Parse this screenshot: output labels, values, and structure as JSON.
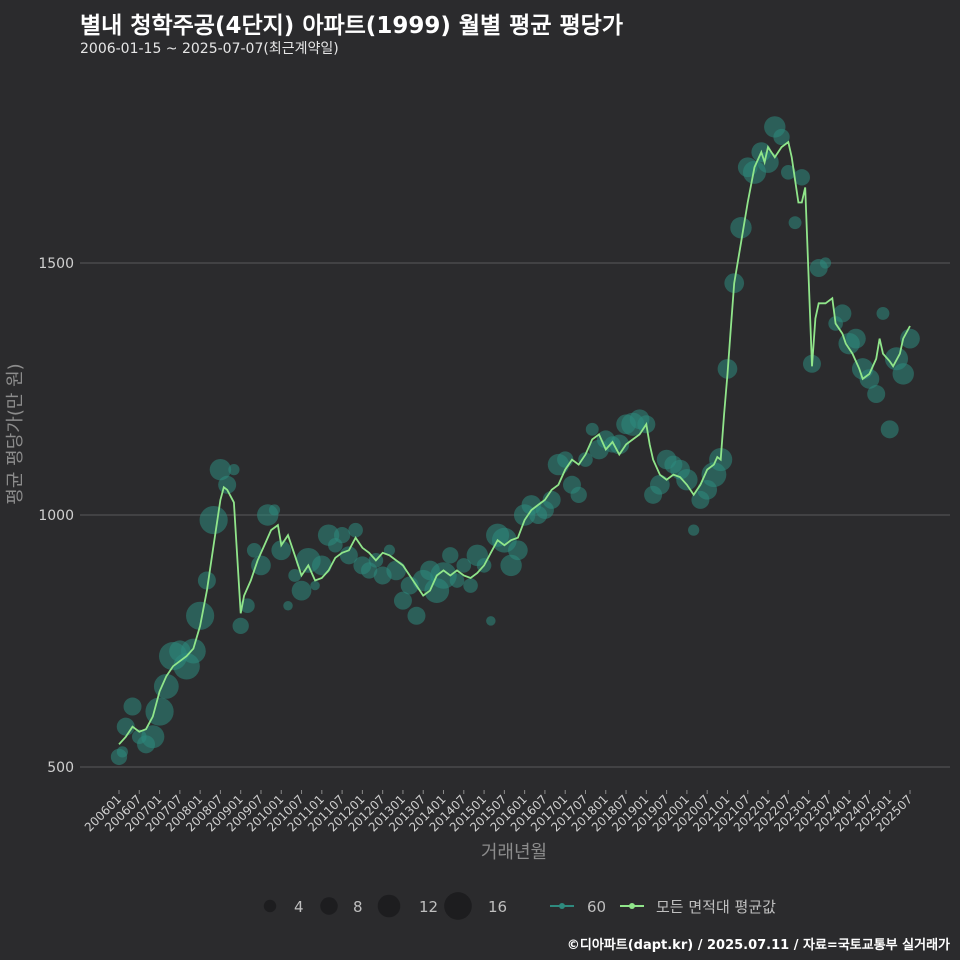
{
  "title": "별내 청학주공(4단지) 아파트(1999) 월별 평균 평당가",
  "subtitle": "2006-01-15 ~ 2025-07-07(최근계약일)",
  "footer": "©디아파트(dapt.kr) / 2025.07.11 / 자료=국토교통부 실거래가",
  "colors": {
    "background": "#2b2b2d",
    "line": "#90e58a",
    "bubble": "#2e8a7e",
    "grid": "#5a5a5a"
  },
  "chart_data": {
    "type": "line",
    "xlabel": "거래년월",
    "ylabel": "평균 평당가(만 원)",
    "ylim": [
      445,
      1785
    ],
    "yticks": [
      500,
      1000,
      1500
    ],
    "x_range_months": [
      0,
      234
    ],
    "xticks": [
      "200601",
      "200607",
      "200701",
      "200707",
      "200801",
      "200807",
      "200901",
      "200907",
      "201001",
      "201007",
      "201101",
      "201107",
      "201201",
      "201207",
      "201301",
      "201307",
      "201401",
      "201407",
      "201501",
      "201507",
      "201601",
      "201607",
      "201701",
      "201707",
      "201801",
      "201807",
      "201901",
      "201907",
      "202001",
      "202007",
      "202101",
      "202107",
      "202201",
      "202207",
      "202301",
      "202307",
      "202401",
      "202407",
      "202501",
      "202507"
    ],
    "series": [
      {
        "name": "모든 면적대 평균값",
        "points": [
          [
            0,
            545
          ],
          [
            2,
            560
          ],
          [
            4,
            580
          ],
          [
            6,
            570
          ],
          [
            8,
            575
          ],
          [
            10,
            600
          ],
          [
            12,
            650
          ],
          [
            14,
            680
          ],
          [
            16,
            700
          ],
          [
            18,
            710
          ],
          [
            20,
            720
          ],
          [
            22,
            735
          ],
          [
            24,
            780
          ],
          [
            26,
            850
          ],
          [
            28,
            940
          ],
          [
            30,
            1030
          ],
          [
            31,
            1055
          ],
          [
            32,
            1050
          ],
          [
            34,
            1025
          ],
          [
            36,
            805
          ],
          [
            37,
            840
          ],
          [
            39,
            870
          ],
          [
            41,
            910
          ],
          [
            43,
            940
          ],
          [
            45,
            970
          ],
          [
            47,
            980
          ],
          [
            48,
            940
          ],
          [
            50,
            960
          ],
          [
            52,
            920
          ],
          [
            54,
            880
          ],
          [
            56,
            900
          ],
          [
            58,
            870
          ],
          [
            60,
            875
          ],
          [
            62,
            890
          ],
          [
            64,
            915
          ],
          [
            66,
            925
          ],
          [
            68,
            930
          ],
          [
            70,
            955
          ],
          [
            72,
            935
          ],
          [
            74,
            925
          ],
          [
            76,
            910
          ],
          [
            78,
            925
          ],
          [
            80,
            920
          ],
          [
            82,
            910
          ],
          [
            84,
            900
          ],
          [
            86,
            880
          ],
          [
            88,
            860
          ],
          [
            90,
            840
          ],
          [
            92,
            850
          ],
          [
            94,
            880
          ],
          [
            96,
            890
          ],
          [
            98,
            880
          ],
          [
            100,
            890
          ],
          [
            102,
            880
          ],
          [
            104,
            875
          ],
          [
            106,
            885
          ],
          [
            108,
            900
          ],
          [
            110,
            925
          ],
          [
            112,
            950
          ],
          [
            114,
            940
          ],
          [
            116,
            950
          ],
          [
            118,
            955
          ],
          [
            120,
            990
          ],
          [
            122,
            1010
          ],
          [
            124,
            1020
          ],
          [
            126,
            1030
          ],
          [
            128,
            1050
          ],
          [
            130,
            1060
          ],
          [
            132,
            1090
          ],
          [
            134,
            1110
          ],
          [
            136,
            1100
          ],
          [
            138,
            1120
          ],
          [
            140,
            1150
          ],
          [
            142,
            1160
          ],
          [
            144,
            1130
          ],
          [
            146,
            1145
          ],
          [
            148,
            1120
          ],
          [
            150,
            1140
          ],
          [
            152,
            1150
          ],
          [
            154,
            1160
          ],
          [
            156,
            1180
          ],
          [
            157,
            1140
          ],
          [
            158,
            1110
          ],
          [
            160,
            1080
          ],
          [
            162,
            1070
          ],
          [
            164,
            1080
          ],
          [
            166,
            1075
          ],
          [
            168,
            1060
          ],
          [
            170,
            1040
          ],
          [
            172,
            1060
          ],
          [
            174,
            1090
          ],
          [
            176,
            1100
          ],
          [
            177,
            1115
          ],
          [
            178,
            1110
          ],
          [
            179,
            1200
          ],
          [
            180,
            1280
          ],
          [
            181,
            1370
          ],
          [
            182,
            1460
          ],
          [
            184,
            1540
          ],
          [
            186,
            1620
          ],
          [
            188,
            1690
          ],
          [
            190,
            1720
          ],
          [
            191,
            1700
          ],
          [
            192,
            1730
          ],
          [
            194,
            1710
          ],
          [
            196,
            1730
          ],
          [
            198,
            1740
          ],
          [
            199,
            1710
          ],
          [
            201,
            1620
          ],
          [
            202,
            1620
          ],
          [
            203,
            1650
          ],
          [
            205,
            1295
          ],
          [
            206,
            1390
          ],
          [
            207,
            1420
          ],
          [
            209,
            1420
          ],
          [
            211,
            1430
          ],
          [
            212,
            1380
          ],
          [
            214,
            1360
          ],
          [
            215,
            1340
          ],
          [
            217,
            1320
          ],
          [
            219,
            1290
          ],
          [
            220,
            1270
          ],
          [
            222,
            1280
          ],
          [
            224,
            1310
          ],
          [
            225,
            1350
          ],
          [
            226,
            1320
          ],
          [
            228,
            1305
          ],
          [
            229,
            1295
          ],
          [
            231,
            1320
          ],
          [
            232,
            1350
          ],
          [
            234,
            1375
          ]
        ]
      },
      {
        "name": "60",
        "size_legend": [
          4,
          8,
          12,
          16
        ],
        "bubbles": [
          [
            0,
            520,
            7
          ],
          [
            1,
            530,
            4
          ],
          [
            2,
            580,
            8
          ],
          [
            4,
            620,
            8
          ],
          [
            6,
            560,
            6
          ],
          [
            8,
            545,
            8
          ],
          [
            10,
            560,
            11
          ],
          [
            12,
            610,
            14
          ],
          [
            14,
            660,
            12
          ],
          [
            16,
            720,
            14
          ],
          [
            18,
            730,
            10
          ],
          [
            20,
            700,
            13
          ],
          [
            22,
            730,
            12
          ],
          [
            24,
            800,
            14
          ],
          [
            26,
            870,
            8
          ],
          [
            28,
            990,
            14
          ],
          [
            30,
            1090,
            10
          ],
          [
            32,
            1060,
            8
          ],
          [
            34,
            1090,
            4
          ],
          [
            36,
            780,
            7
          ],
          [
            38,
            820,
            6
          ],
          [
            40,
            930,
            6
          ],
          [
            42,
            900,
            9
          ],
          [
            44,
            1000,
            10
          ],
          [
            46,
            1010,
            4
          ],
          [
            48,
            930,
            9
          ],
          [
            50,
            820,
            3
          ],
          [
            52,
            880,
            5
          ],
          [
            54,
            850,
            9
          ],
          [
            56,
            910,
            12
          ],
          [
            58,
            860,
            3
          ],
          [
            60,
            900,
            9
          ],
          [
            62,
            960,
            10
          ],
          [
            64,
            940,
            6
          ],
          [
            66,
            960,
            7
          ],
          [
            68,
            920,
            8
          ],
          [
            70,
            970,
            6
          ],
          [
            72,
            900,
            8
          ],
          [
            74,
            890,
            7
          ],
          [
            76,
            910,
            6
          ],
          [
            78,
            880,
            8
          ],
          [
            80,
            930,
            4
          ],
          [
            82,
            890,
            9
          ],
          [
            84,
            830,
            8
          ],
          [
            86,
            860,
            8
          ],
          [
            88,
            800,
            8
          ],
          [
            90,
            870,
            10
          ],
          [
            92,
            890,
            9
          ],
          [
            94,
            850,
            12
          ],
          [
            96,
            880,
            13
          ],
          [
            98,
            920,
            7
          ],
          [
            100,
            870,
            6
          ],
          [
            102,
            900,
            6
          ],
          [
            104,
            860,
            6
          ],
          [
            106,
            920,
            10
          ],
          [
            108,
            900,
            6
          ],
          [
            110,
            790,
            3
          ],
          [
            112,
            960,
            11
          ],
          [
            114,
            950,
            12
          ],
          [
            116,
            900,
            10
          ],
          [
            118,
            930,
            9
          ],
          [
            120,
            1000,
            10
          ],
          [
            122,
            1020,
            9
          ],
          [
            124,
            1000,
            8
          ],
          [
            126,
            1010,
            8
          ],
          [
            128,
            1030,
            8
          ],
          [
            130,
            1100,
            10
          ],
          [
            132,
            1110,
            7
          ],
          [
            134,
            1060,
            8
          ],
          [
            136,
            1040,
            7
          ],
          [
            138,
            1110,
            6
          ],
          [
            140,
            1170,
            5
          ],
          [
            142,
            1130,
            9
          ],
          [
            144,
            1150,
            8
          ],
          [
            146,
            1140,
            7
          ],
          [
            148,
            1140,
            9
          ],
          [
            150,
            1180,
            9
          ],
          [
            152,
            1180,
            11
          ],
          [
            154,
            1190,
            9
          ],
          [
            156,
            1180,
            8
          ],
          [
            158,
            1040,
            8
          ],
          [
            160,
            1060,
            9
          ],
          [
            162,
            1110,
            9
          ],
          [
            164,
            1100,
            8
          ],
          [
            166,
            1090,
            9
          ],
          [
            168,
            1070,
            10
          ],
          [
            170,
            970,
            4
          ],
          [
            172,
            1030,
            8
          ],
          [
            174,
            1050,
            9
          ],
          [
            176,
            1080,
            12
          ],
          [
            178,
            1110,
            11
          ],
          [
            180,
            1290,
            9
          ],
          [
            182,
            1460,
            9
          ],
          [
            184,
            1570,
            10
          ],
          [
            186,
            1690,
            9
          ],
          [
            188,
            1680,
            11
          ],
          [
            190,
            1720,
            9
          ],
          [
            192,
            1700,
            10
          ],
          [
            194,
            1770,
            10
          ],
          [
            196,
            1750,
            7
          ],
          [
            198,
            1680,
            6
          ],
          [
            200,
            1580,
            5
          ],
          [
            202,
            1670,
            7
          ],
          [
            205,
            1300,
            8
          ],
          [
            207,
            1490,
            8
          ],
          [
            209,
            1500,
            4
          ],
          [
            212,
            1380,
            6
          ],
          [
            214,
            1400,
            8
          ],
          [
            216,
            1340,
            10
          ],
          [
            218,
            1350,
            9
          ],
          [
            220,
            1290,
            10
          ],
          [
            222,
            1270,
            9
          ],
          [
            224,
            1240,
            8
          ],
          [
            226,
            1400,
            5
          ],
          [
            228,
            1170,
            8
          ],
          [
            230,
            1310,
            11
          ],
          [
            232,
            1280,
            10
          ],
          [
            234,
            1350,
            9
          ]
        ]
      }
    ]
  }
}
